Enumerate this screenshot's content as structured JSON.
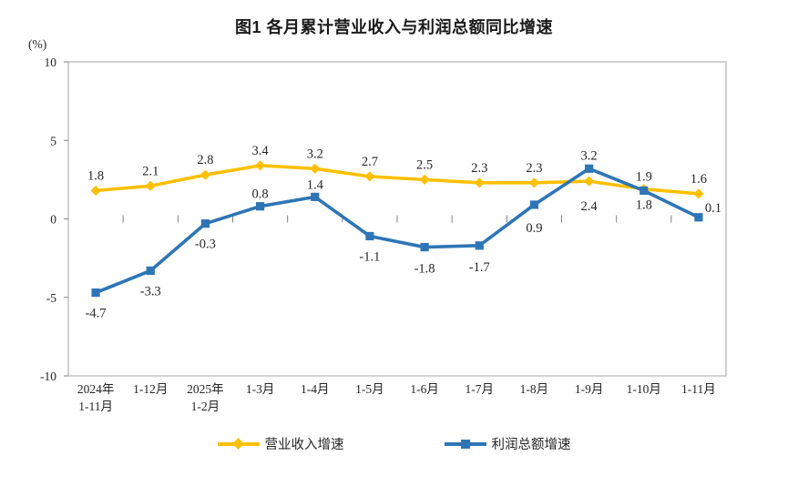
{
  "title": "图1 各月累计营业收入与利润总额同比增速",
  "unit_label": "(%)",
  "chart_data": {
    "type": "line",
    "categories": [
      [
        "2024年",
        "1-11月"
      ],
      [
        "1-12月"
      ],
      [
        "2025年",
        "1-2月"
      ],
      [
        "1-3月"
      ],
      [
        "1-4月"
      ],
      [
        "1-5月"
      ],
      [
        "1-6月"
      ],
      [
        "1-7月"
      ],
      [
        "1-8月"
      ],
      [
        "1-9月"
      ],
      [
        "1-10月"
      ],
      [
        "1-11月"
      ]
    ],
    "series": [
      {
        "name": "营业收入增速",
        "color": "#FFC000",
        "marker": "diamond",
        "values": [
          1.8,
          2.1,
          2.8,
          3.4,
          3.2,
          2.7,
          2.5,
          2.3,
          2.3,
          2.4,
          1.9,
          1.6
        ]
      },
      {
        "name": "利润总额增速",
        "color": "#2E75B6",
        "marker": "square",
        "values": [
          -4.7,
          -3.3,
          -0.3,
          0.8,
          1.4,
          -1.1,
          -1.8,
          -1.7,
          0.9,
          3.2,
          1.8,
          0.1
        ]
      }
    ],
    "ylabel": "(%)",
    "ylim": [
      -10,
      10
    ],
    "yticks": [
      10,
      5,
      0,
      -5,
      -10
    ],
    "grid": false,
    "legend_position": "bottom",
    "axis_color": "#b3b3b3",
    "tick_color": "#808080",
    "label_color": "#262626"
  }
}
